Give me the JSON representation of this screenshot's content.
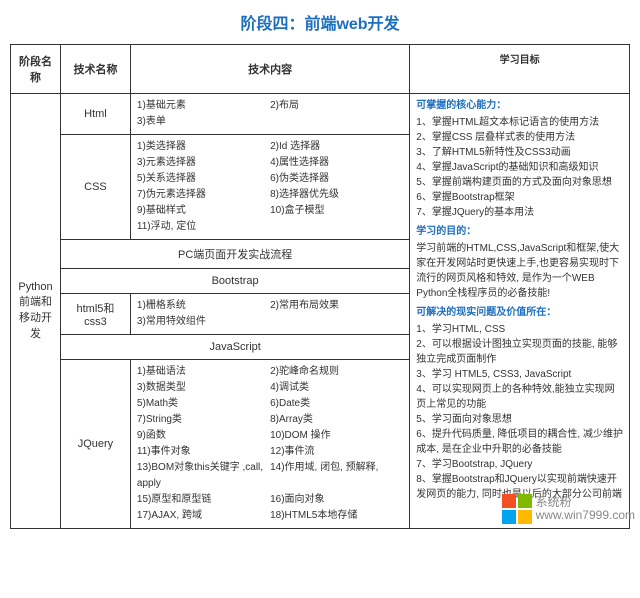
{
  "title": "阶段四：前端web开发",
  "headers": {
    "stage": "阶段名称",
    "tech": "技术名称",
    "content": "技术内容",
    "goal": "学习目标"
  },
  "stage_name": "Python前端和移动开发",
  "rows": {
    "html": {
      "name": "Html",
      "items": [
        "1)基础元素",
        "2)布局",
        "3)表单"
      ]
    },
    "css": {
      "name": "CSS",
      "items": [
        "1)类选择器",
        "2)Id 选择器",
        "3)元素选择器",
        "4)属性选择器",
        "5)关系选择器",
        "6)伪类选择器",
        "7)伪元素选择器",
        "8)选择器优先级",
        "9)基础样式",
        "10)盒子模型",
        "11)浮动, 定位"
      ]
    },
    "pc": "PC端页面开发实战流程",
    "bootstrap": "Bootstrap",
    "html5css3": {
      "name": "html5和css3",
      "items": [
        "1)栅格系统",
        "2)常用布局效果",
        "3)常用特效组件"
      ]
    },
    "javascript": "JavaScript",
    "jquery": {
      "name": "JQuery",
      "items": [
        "1)基础语法",
        "2)驼峰命名规则",
        "3)数据类型",
        "4)调试类",
        "5)Math类",
        "6)Date类",
        "7)String类",
        "8)Array类",
        "9)函数",
        "10)DOM 操作",
        "11)事件对象",
        "12)事件流",
        "13)BOM对象this关键字 ,call, apply",
        "14)作用域, 闭包, 预解释,",
        "15)原型和原型链",
        "16)面向对象",
        "17)AJAX, 跨域",
        "18)HTML5本地存储"
      ]
    }
  },
  "goals": {
    "h1": "可掌握的核心能力：",
    "p1": "1、掌握HTML超文本标记语言的使用方法\n2、掌握CSS 层叠样式表的使用方法\n3、了解HTML5新特性及CSS3动画\n4、掌握JavaScript的基础知识和高级知识\n5、掌握前端构建页面的方式及面向对象思想\n6、掌握Bootstrap框架\n7、掌握JQuery的基本用法",
    "h2": "学习的目的：",
    "p2": "学习前端的HTML,CSS,JavaScript和框架,使大家在开发网站时更快速上手,也更容易实现时下流行的网页风格和特效, 是作为一个WEB Python全栈程序员的必备技能!",
    "h3": "可解决的现实问题及价值所在：",
    "p3": "1、学习HTML, CSS\n2、可以根据设计图独立实现页面的技能, 能够独立完成页面制作\n3、学习 HTML5, CSS3, JavaScript\n4、可以实现网页上的各种特效,能独立实现网页上常见的功能\n5、学习面向对象思想\n6、提升代码质量, 降低项目的耦合性, 减少维护成本, 是在企业中升职的必备技能\n7、学习Bootstrap, JQuery\n8、掌握Bootstrap和JQuery以实现前端快速开发网页的能力, 同时也是以后的大部分公司前端"
  },
  "watermark": {
    "brand": "系统粉",
    "url": "www.win7999.com"
  }
}
